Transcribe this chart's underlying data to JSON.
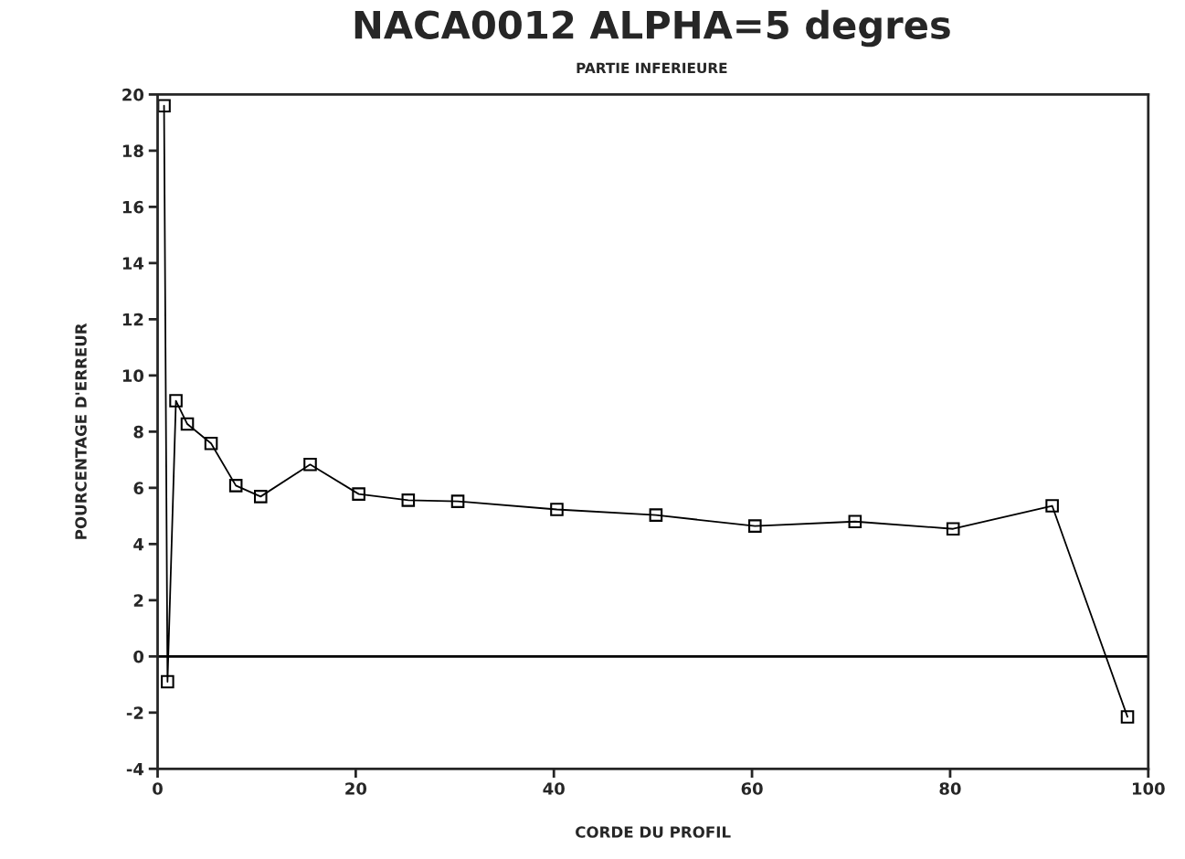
{
  "chart_data": {
    "type": "line",
    "title": "NACA0012 ALPHA=5 degres",
    "subtitle": "PARTIE INFERIEURE",
    "xlabel": "CORDE DU PROFIL",
    "ylabel": "POURCENTAGE D'ERREUR",
    "x": [
      0.65,
      1.0,
      1.85,
      3.0,
      5.4,
      7.9,
      10.4,
      15.4,
      20.3,
      25.3,
      30.3,
      40.3,
      50.3,
      60.3,
      70.4,
      80.3,
      90.3,
      97.9
    ],
    "series": [
      {
        "color": "#000000",
        "values": [
          19.6,
          -0.9,
          9.1,
          8.27,
          7.58,
          6.08,
          5.69,
          6.83,
          5.78,
          5.56,
          5.52,
          5.23,
          5.03,
          4.64,
          4.8,
          4.54,
          5.36,
          -2.15
        ]
      }
    ],
    "xlim": [
      0,
      100
    ],
    "xticks": [
      0,
      20,
      40,
      60,
      80,
      100
    ],
    "ylim": [
      -4,
      20
    ],
    "yticks": [
      -4,
      -2,
      0,
      2,
      4,
      6,
      8,
      10,
      12,
      14,
      16,
      18,
      20
    ],
    "ref_lines": [
      {
        "axis": "y",
        "value": 0,
        "color": "#000000",
        "line_style": "solid"
      }
    ],
    "marker": "square",
    "line_style": "solid",
    "grid": false
  }
}
